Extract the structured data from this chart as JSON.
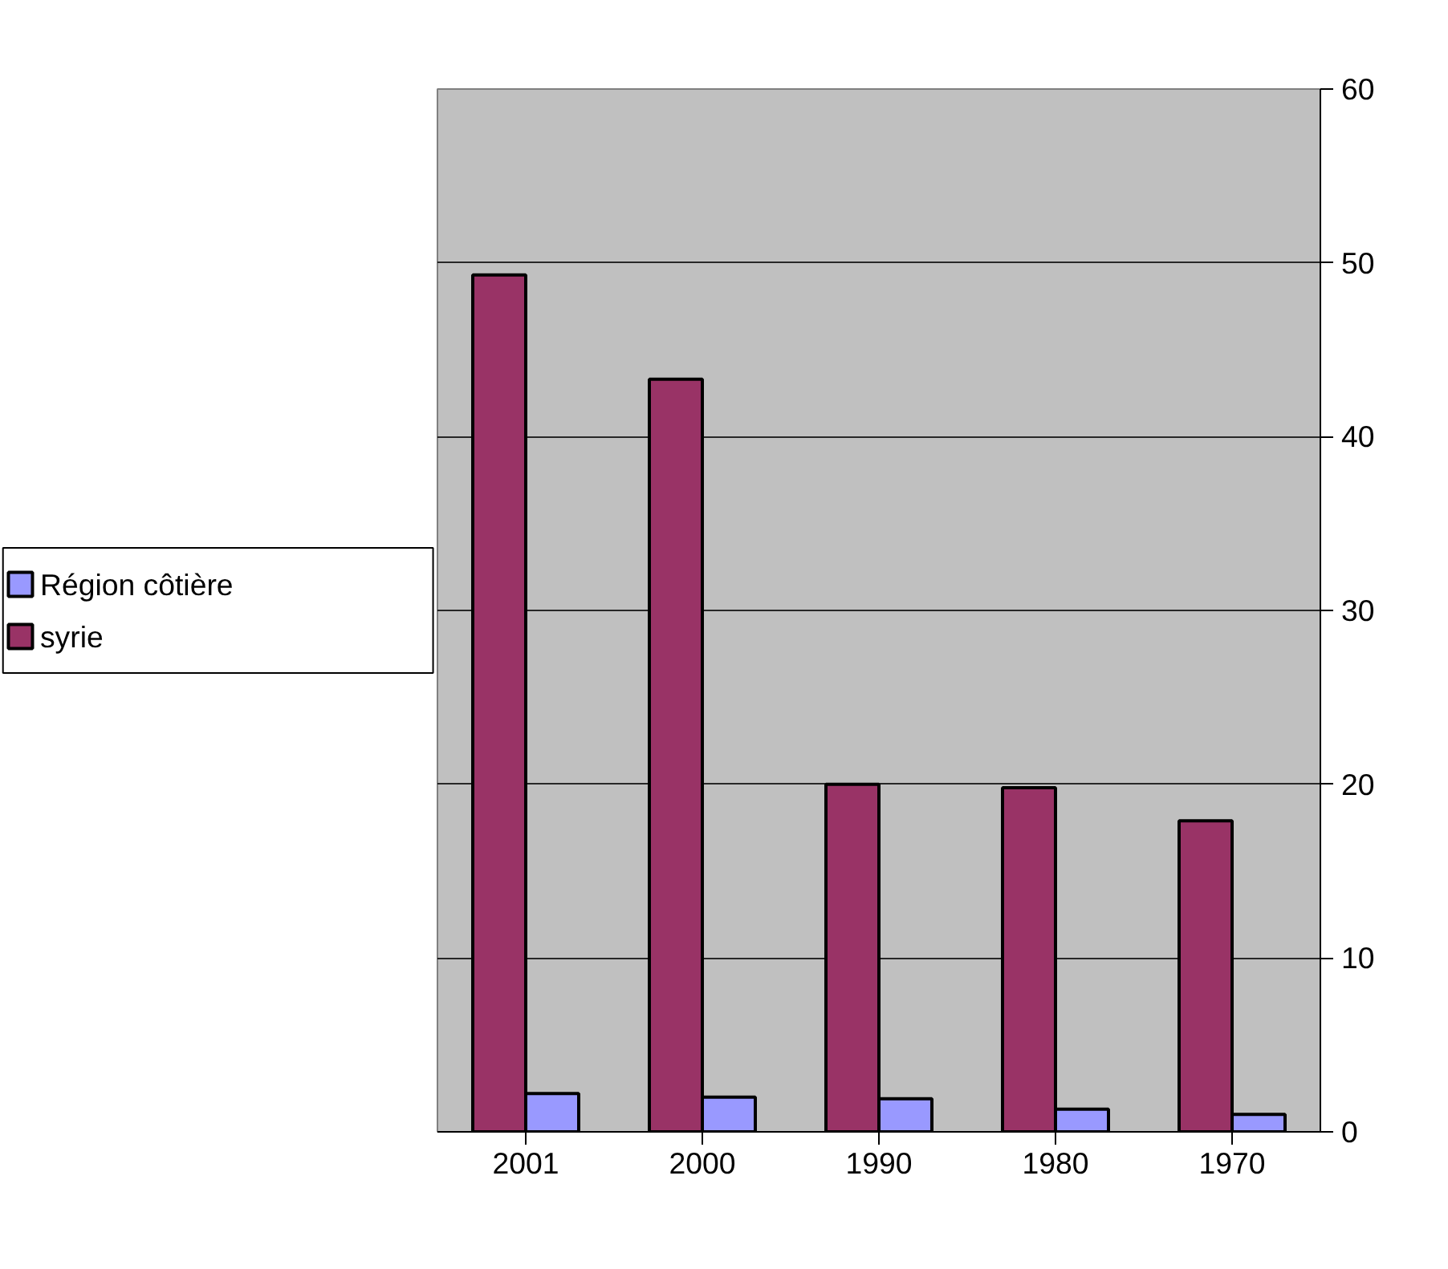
{
  "chart_data": {
    "type": "bar",
    "categories": [
      "2001",
      "2000",
      "1990",
      "1980",
      "1970"
    ],
    "series": [
      {
        "name": "syrie",
        "color": "#993366",
        "values": [
          49.3,
          43.3,
          20.0,
          19.8,
          17.9
        ]
      },
      {
        "name": "Région côtière",
        "color": "#9999ff",
        "values": [
          2.2,
          2.0,
          1.9,
          1.3,
          1.0
        ]
      }
    ],
    "ylim": [
      0,
      60
    ],
    "yticks": [
      0,
      10,
      20,
      30,
      40,
      50,
      60
    ],
    "grid": "y",
    "legend": "left"
  }
}
